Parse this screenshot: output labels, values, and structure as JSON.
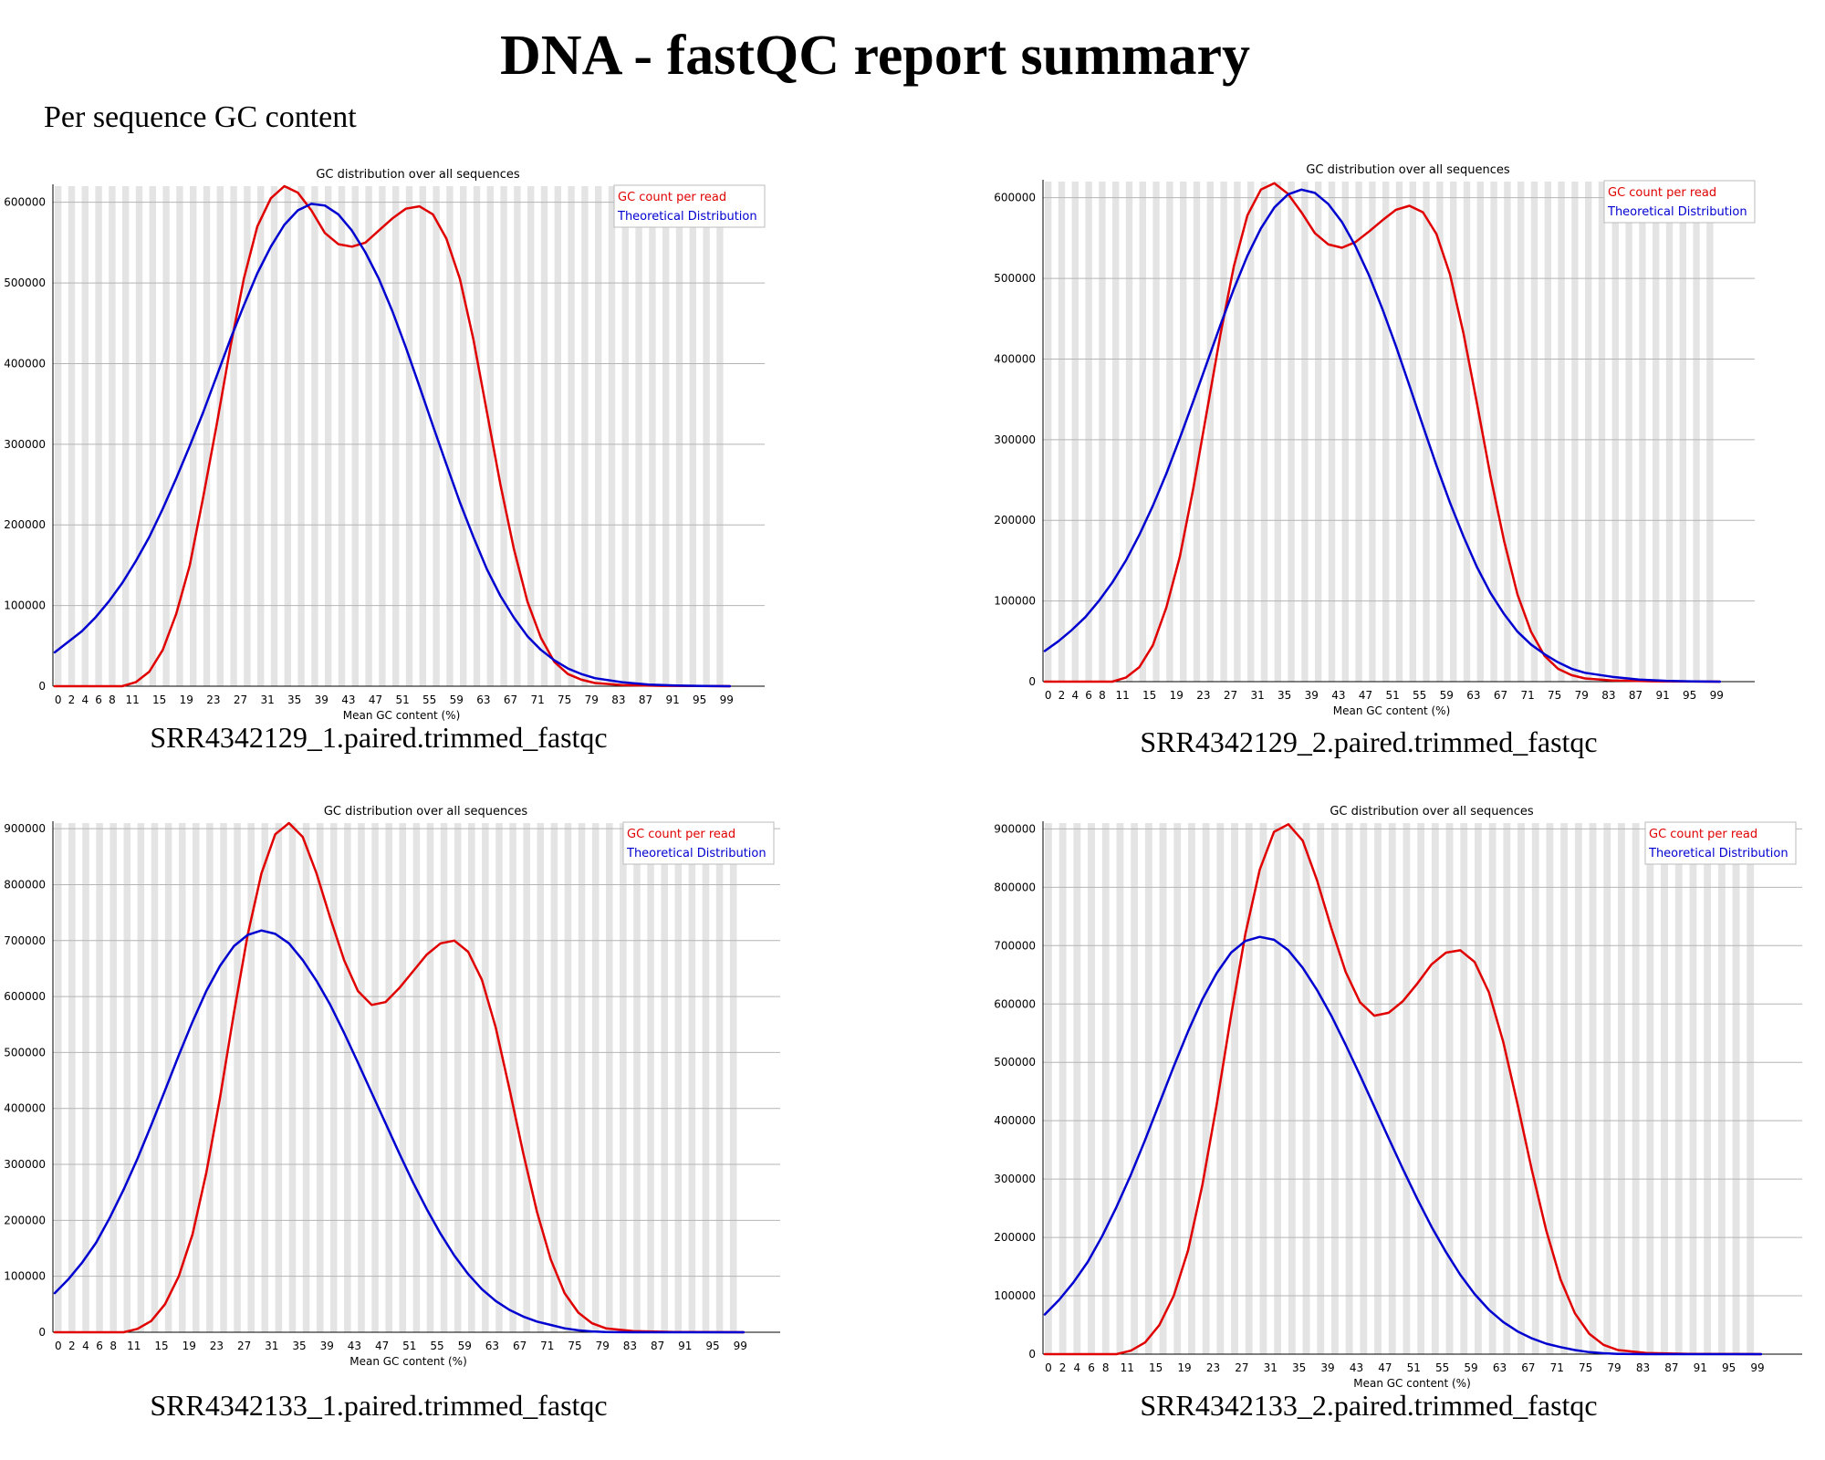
{
  "header": {
    "title": "DNA - fastQC report summary",
    "subtitle": "Per sequence GC content"
  },
  "chart_data": [
    {
      "type": "line",
      "caption": "SRR4342129_1.paired.trimmed_fastqc",
      "title": "GC distribution over all sequences",
      "xlabel": "Mean GC content (%)",
      "ylabel": "",
      "xlim": [
        0,
        100
      ],
      "ylim": [
        0,
        620000
      ],
      "yticks": [
        0,
        100000,
        200000,
        300000,
        400000,
        500000,
        600000
      ],
      "xticks": [
        0,
        2,
        4,
        6,
        8,
        11,
        15,
        19,
        23,
        27,
        31,
        35,
        39,
        43,
        47,
        51,
        55,
        59,
        63,
        67,
        71,
        75,
        79,
        83,
        87,
        91,
        95,
        99
      ],
      "grid": true,
      "legend": "top-right",
      "series": [
        {
          "name": "GC count per read",
          "color": "#e00000",
          "x": [
            0,
            10,
            12,
            14,
            16,
            18,
            20,
            22,
            24,
            26,
            28,
            30,
            32,
            34,
            36,
            38,
            40,
            42,
            44,
            46,
            48,
            50,
            52,
            54,
            56,
            58,
            60,
            62,
            64,
            66,
            68,
            70,
            72,
            74,
            76,
            78,
            80,
            84,
            90,
            100
          ],
          "y": [
            0,
            0,
            5000,
            18000,
            45000,
            90000,
            150000,
            235000,
            325000,
            420000,
            505000,
            570000,
            605000,
            620000,
            612000,
            590000,
            562000,
            548000,
            545000,
            550000,
            565000,
            580000,
            592000,
            595000,
            585000,
            555000,
            505000,
            430000,
            340000,
            250000,
            170000,
            105000,
            60000,
            30000,
            15000,
            8000,
            4000,
            1500,
            500,
            0
          ]
        },
        {
          "name": "Theoretical Distribution",
          "color": "#0000d0",
          "x": [
            0,
            2,
            4,
            6,
            8,
            10,
            12,
            14,
            16,
            18,
            20,
            22,
            24,
            26,
            28,
            30,
            32,
            34,
            36,
            38,
            40,
            42,
            44,
            46,
            48,
            50,
            52,
            54,
            56,
            58,
            60,
            62,
            64,
            66,
            68,
            70,
            72,
            74,
            76,
            78,
            80,
            84,
            88,
            92,
            96,
            100
          ],
          "y": [
            42000,
            55000,
            68000,
            85000,
            105000,
            128000,
            155000,
            185000,
            220000,
            258000,
            298000,
            340000,
            385000,
            430000,
            472000,
            512000,
            545000,
            572000,
            590000,
            598000,
            596000,
            585000,
            565000,
            538000,
            505000,
            465000,
            420000,
            372000,
            323000,
            275000,
            228000,
            185000,
            145000,
            112000,
            85000,
            62000,
            45000,
            32000,
            22000,
            15000,
            10000,
            5000,
            2000,
            800,
            200,
            0
          ]
        }
      ]
    },
    {
      "type": "line",
      "caption": "SRR4342129_2.paired.trimmed_fastqc",
      "title": "GC distribution over all sequences",
      "xlabel": "Mean GC content (%)",
      "ylabel": "",
      "xlim": [
        0,
        100
      ],
      "ylim": [
        0,
        620000
      ],
      "yticks": [
        0,
        100000,
        200000,
        300000,
        400000,
        500000,
        600000
      ],
      "xticks": [
        0,
        2,
        4,
        6,
        8,
        11,
        15,
        19,
        23,
        27,
        31,
        35,
        39,
        43,
        47,
        51,
        55,
        59,
        63,
        67,
        71,
        75,
        79,
        83,
        87,
        91,
        95,
        99
      ],
      "grid": true,
      "legend": "top-right",
      "series": [
        {
          "name": "GC count per read",
          "color": "#e00000",
          "x": [
            0,
            10,
            12,
            14,
            16,
            18,
            20,
            22,
            24,
            26,
            28,
            30,
            32,
            34,
            36,
            38,
            40,
            42,
            44,
            46,
            48,
            50,
            52,
            54,
            56,
            58,
            60,
            62,
            64,
            66,
            68,
            70,
            72,
            74,
            76,
            78,
            80,
            84,
            90,
            100
          ],
          "y": [
            0,
            0,
            5000,
            18000,
            45000,
            92000,
            155000,
            240000,
            335000,
            430000,
            515000,
            578000,
            610000,
            618000,
            605000,
            582000,
            556000,
            542000,
            538000,
            545000,
            558000,
            572000,
            585000,
            590000,
            582000,
            555000,
            505000,
            432000,
            345000,
            255000,
            175000,
            108000,
            62000,
            32000,
            16000,
            8000,
            4000,
            1500,
            500,
            0
          ]
        },
        {
          "name": "Theoretical Distribution",
          "color": "#0000d0",
          "x": [
            0,
            2,
            4,
            6,
            8,
            10,
            12,
            14,
            16,
            18,
            20,
            22,
            24,
            26,
            28,
            30,
            32,
            34,
            36,
            38,
            40,
            42,
            44,
            46,
            48,
            50,
            52,
            54,
            56,
            58,
            60,
            62,
            64,
            66,
            68,
            70,
            72,
            74,
            76,
            78,
            80,
            84,
            88,
            92,
            96,
            100
          ],
          "y": [
            38000,
            50000,
            64000,
            80000,
            100000,
            123000,
            150000,
            182000,
            218000,
            258000,
            302000,
            348000,
            395000,
            442000,
            487000,
            528000,
            562000,
            588000,
            604000,
            610000,
            606000,
            592000,
            570000,
            540000,
            504000,
            462000,
            416000,
            367000,
            317000,
            268000,
            222000,
            180000,
            142000,
            110000,
            84000,
            62000,
            46000,
            34000,
            24000,
            16000,
            11000,
            6000,
            2500,
            1000,
            300,
            0
          ]
        }
      ]
    },
    {
      "type": "line",
      "caption": "SRR4342133_1.paired.trimmed_fastqc",
      "title": "GC distribution over all sequences",
      "xlabel": "Mean GC content (%)",
      "ylabel": "",
      "xlim": [
        0,
        100
      ],
      "ylim": [
        0,
        910000
      ],
      "yticks": [
        0,
        100000,
        200000,
        300000,
        400000,
        500000,
        600000,
        700000,
        800000,
        900000
      ],
      "xticks": [
        0,
        2,
        4,
        6,
        8,
        11,
        15,
        19,
        23,
        27,
        31,
        35,
        39,
        43,
        47,
        51,
        55,
        59,
        63,
        67,
        71,
        75,
        79,
        83,
        87,
        91,
        95,
        99
      ],
      "grid": true,
      "legend": "top-right",
      "series": [
        {
          "name": "GC count per read",
          "color": "#e00000",
          "x": [
            0,
            10,
            12,
            14,
            16,
            18,
            20,
            22,
            24,
            26,
            28,
            30,
            32,
            34,
            36,
            38,
            40,
            42,
            44,
            46,
            48,
            50,
            52,
            54,
            56,
            58,
            60,
            62,
            64,
            66,
            68,
            70,
            72,
            74,
            76,
            78,
            80,
            84,
            90,
            100
          ],
          "y": [
            0,
            0,
            6000,
            20000,
            50000,
            100000,
            175000,
            285000,
            420000,
            570000,
            710000,
            820000,
            890000,
            910000,
            885000,
            820000,
            740000,
            665000,
            610000,
            585000,
            590000,
            615000,
            645000,
            675000,
            695000,
            700000,
            680000,
            630000,
            545000,
            435000,
            320000,
            215000,
            130000,
            70000,
            35000,
            16000,
            7000,
            2000,
            500,
            0
          ]
        },
        {
          "name": "Theoretical Distribution",
          "color": "#0000d0",
          "x": [
            0,
            2,
            4,
            6,
            8,
            10,
            12,
            14,
            16,
            18,
            20,
            22,
            24,
            26,
            28,
            30,
            32,
            34,
            36,
            38,
            40,
            42,
            44,
            46,
            48,
            50,
            52,
            54,
            56,
            58,
            60,
            62,
            64,
            66,
            68,
            70,
            72,
            74,
            76,
            78,
            80,
            84,
            88,
            92,
            96,
            100
          ],
          "y": [
            70000,
            95000,
            125000,
            160000,
            205000,
            255000,
            310000,
            370000,
            432000,
            495000,
            555000,
            610000,
            655000,
            690000,
            710000,
            718000,
            712000,
            695000,
            665000,
            628000,
            585000,
            535000,
            482000,
            428000,
            374000,
            320000,
            268000,
            220000,
            176000,
            137000,
            104000,
            77000,
            56000,
            40000,
            28000,
            19000,
            13000,
            7000,
            3500,
            1500,
            500,
            0,
            0,
            0,
            0,
            0
          ]
        }
      ]
    },
    {
      "type": "line",
      "caption": "SRR4342133_2.paired.trimmed_fastqc",
      "title": "GC distribution over all sequences",
      "xlabel": "Mean GC content (%)",
      "ylabel": "",
      "xlim": [
        0,
        100
      ],
      "ylim": [
        0,
        910000
      ],
      "yticks": [
        0,
        100000,
        200000,
        300000,
        400000,
        500000,
        600000,
        700000,
        800000,
        900000
      ],
      "xticks": [
        0,
        2,
        4,
        6,
        8,
        11,
        15,
        19,
        23,
        27,
        31,
        35,
        39,
        43,
        47,
        51,
        55,
        59,
        63,
        67,
        71,
        75,
        79,
        83,
        87,
        91,
        95,
        99
      ],
      "grid": true,
      "legend": "top-right",
      "series": [
        {
          "name": "GC count per read",
          "color": "#e00000",
          "x": [
            0,
            10,
            12,
            14,
            16,
            18,
            20,
            22,
            24,
            26,
            28,
            30,
            32,
            34,
            36,
            38,
            40,
            42,
            44,
            46,
            48,
            50,
            52,
            54,
            56,
            58,
            60,
            62,
            64,
            66,
            68,
            70,
            72,
            74,
            76,
            78,
            80,
            84,
            90,
            100
          ],
          "y": [
            0,
            0,
            6000,
            20000,
            50000,
            100000,
            178000,
            290000,
            428000,
            580000,
            720000,
            830000,
            895000,
            908000,
            880000,
            812000,
            730000,
            655000,
            603000,
            580000,
            585000,
            605000,
            635000,
            668000,
            688000,
            692000,
            672000,
            620000,
            535000,
            428000,
            315000,
            212000,
            128000,
            70000,
            35000,
            16000,
            7000,
            2000,
            500,
            0
          ]
        },
        {
          "name": "Theoretical Distribution",
          "color": "#0000d0",
          "x": [
            0,
            2,
            4,
            6,
            8,
            10,
            12,
            14,
            16,
            18,
            20,
            22,
            24,
            26,
            28,
            30,
            32,
            34,
            36,
            38,
            40,
            42,
            44,
            46,
            48,
            50,
            52,
            54,
            56,
            58,
            60,
            62,
            64,
            66,
            68,
            70,
            72,
            74,
            76,
            78,
            80,
            84,
            88,
            92,
            96,
            100
          ],
          "y": [
            68000,
            93000,
            123000,
            158000,
            202000,
            252000,
            307000,
            367000,
            430000,
            493000,
            553000,
            608000,
            653000,
            688000,
            708000,
            715000,
            710000,
            692000,
            662000,
            624000,
            580000,
            530000,
            478000,
            424000,
            370000,
            317000,
            266000,
            218000,
            175000,
            136000,
            103000,
            76000,
            55000,
            39000,
            27000,
            18000,
            12000,
            7000,
            3500,
            1500,
            500,
            0,
            0,
            0,
            0,
            0
          ]
        }
      ]
    }
  ]
}
